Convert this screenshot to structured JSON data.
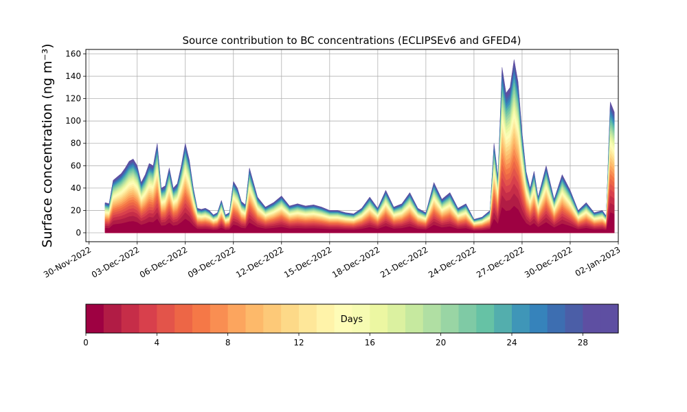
{
  "chart_data": {
    "type": "area",
    "title": "Source contribution to BC concentrations (ECLIPSEv6 and GFED4)",
    "ylabel": "Surface concentration (ng m⁻³)",
    "xlabel": "",
    "ylim": [
      -8,
      164
    ],
    "xlim": [
      "2022-11-30",
      "2023-01-02"
    ],
    "x_ticks": [
      "30-Nov-2022",
      "03-Dec-2022",
      "06-Dec-2022",
      "09-Dec-2022",
      "12-Dec-2022",
      "15-Dec-2022",
      "18-Dec-2022",
      "21-Dec-2022",
      "24-Dec-2022",
      "27-Dec-2022",
      "30-Dec-2022",
      "02-Jan-2023"
    ],
    "y_ticks": [
      "0",
      "20",
      "40",
      "60",
      "80",
      "100",
      "120",
      "140",
      "160"
    ],
    "grid": true,
    "series_description": "stacked contribution by age of emission (0-30 days)",
    "total": {
      "x": [
        "2022-12-01",
        "2022-12-01 06:00",
        "2022-12-01 12:00",
        "2022-12-01 18:00",
        "2022-12-02",
        "2022-12-02 06:00",
        "2022-12-02 12:00",
        "2022-12-02 18:00",
        "2022-12-03",
        "2022-12-03 06:00",
        "2022-12-03 12:00",
        "2022-12-03 18:00",
        "2022-12-04",
        "2022-12-04 06:00",
        "2022-12-04 12:00",
        "2022-12-04 18:00",
        "2022-12-05",
        "2022-12-05 06:00",
        "2022-12-05 12:00",
        "2022-12-05 18:00",
        "2022-12-06",
        "2022-12-06 06:00",
        "2022-12-06 12:00",
        "2022-12-06 18:00",
        "2022-12-07",
        "2022-12-07 06:00",
        "2022-12-07 12:00",
        "2022-12-07 18:00",
        "2022-12-08",
        "2022-12-08 06:00",
        "2022-12-08 12:00",
        "2022-12-08 18:00",
        "2022-12-09",
        "2022-12-09 06:00",
        "2022-12-09 12:00",
        "2022-12-09 18:00",
        "2022-12-10",
        "2022-12-10 12:00",
        "2022-12-11",
        "2022-12-11 12:00",
        "2022-12-12",
        "2022-12-12 12:00",
        "2022-12-13",
        "2022-12-13 12:00",
        "2022-12-14",
        "2022-12-14 12:00",
        "2022-12-15",
        "2022-12-15 12:00",
        "2022-12-16",
        "2022-12-16 12:00",
        "2022-12-17",
        "2022-12-17 12:00",
        "2022-12-18",
        "2022-12-18 12:00",
        "2022-12-19",
        "2022-12-19 12:00",
        "2022-12-20",
        "2022-12-20 12:00",
        "2022-12-21",
        "2022-12-21 12:00",
        "2022-12-22",
        "2022-12-22 12:00",
        "2022-12-23",
        "2022-12-23 12:00",
        "2022-12-24",
        "2022-12-24 12:00",
        "2022-12-25",
        "2022-12-25 06:00",
        "2022-12-25 12:00",
        "2022-12-25 18:00",
        "2022-12-26",
        "2022-12-26 06:00",
        "2022-12-26 12:00",
        "2022-12-26 18:00",
        "2022-12-27",
        "2022-12-27 06:00",
        "2022-12-27 12:00",
        "2022-12-27 18:00",
        "2022-12-28",
        "2022-12-28 12:00",
        "2022-12-29",
        "2022-12-29 12:00",
        "2022-12-30",
        "2022-12-30 12:00",
        "2022-12-31",
        "2022-12-31 12:00",
        "2023-01-01",
        "2023-01-01 06:00",
        "2023-01-01 12:00",
        "2023-01-01 18:00"
      ],
      "y": [
        27,
        26,
        47,
        50,
        53,
        58,
        64,
        66,
        60,
        45,
        52,
        62,
        60,
        80,
        40,
        42,
        58,
        40,
        44,
        60,
        80,
        65,
        40,
        22,
        21,
        22,
        20,
        16,
        18,
        29,
        16,
        18,
        46,
        40,
        28,
        25,
        58,
        32,
        23,
        27,
        33,
        24,
        26,
        24,
        25,
        23,
        20,
        20,
        18,
        17,
        22,
        32,
        22,
        38,
        23,
        26,
        36,
        22,
        18,
        45,
        30,
        36,
        22,
        26,
        12,
        14,
        20,
        80,
        50,
        148,
        125,
        130,
        155,
        135,
        90,
        55,
        40,
        55,
        32,
        60,
        30,
        52,
        38,
        20,
        27,
        18,
        20,
        15,
        117,
        108
      ]
    },
    "colorbar": {
      "label": "Days",
      "min": 0,
      "max": 30,
      "ticks": [
        "0",
        "4",
        "8",
        "12",
        "16",
        "20",
        "24",
        "28"
      ],
      "colors": [
        "#9e0142",
        "#b11c45",
        "#c62d48",
        "#d8404c",
        "#e3544a",
        "#ed6646",
        "#f57847",
        "#f98e52",
        "#fca55e",
        "#fdb96a",
        "#fdc978",
        "#fdd988",
        "#fee799",
        "#fff3a9",
        "#fefcb7",
        "#f6fbb2",
        "#ecf7a2",
        "#dbf1a0",
        "#c6e99f",
        "#b0dfa3",
        "#99d5a4",
        "#7fcaa5",
        "#66c2a5",
        "#53aead",
        "#3f96b8",
        "#3683bb",
        "#3d6eb1",
        "#4b5ea7",
        "#5e4fa2",
        "#5e4fa2"
      ]
    }
  }
}
